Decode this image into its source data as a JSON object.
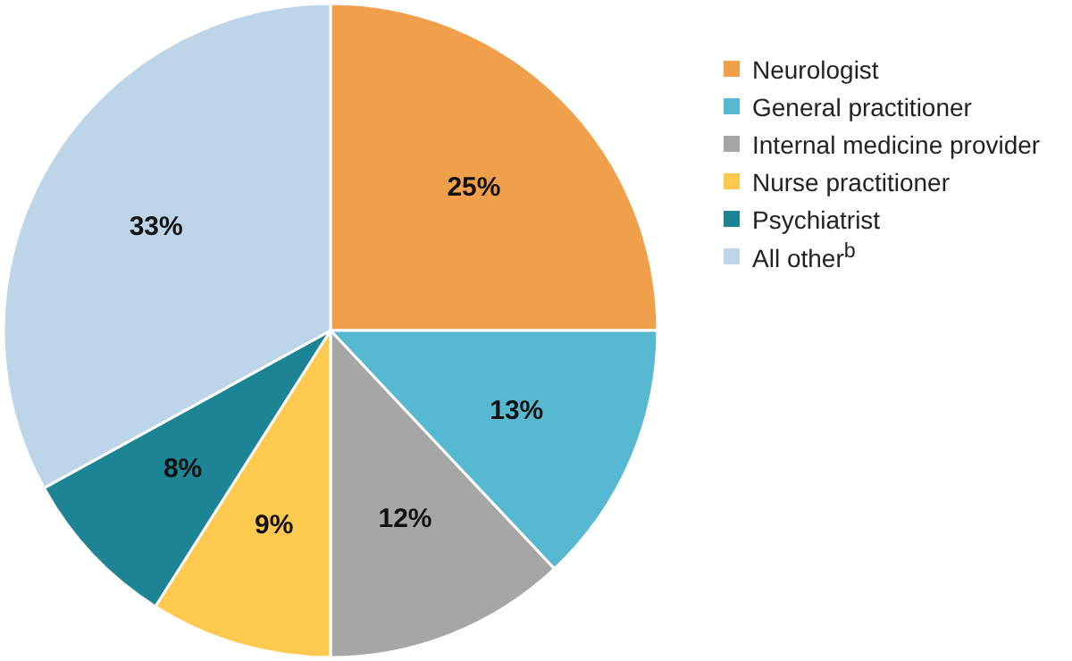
{
  "chart_data": {
    "type": "pie",
    "categories": [
      "Neurologist",
      "General practitioner",
      "Internal medicine provider",
      "Nurse practitioner",
      "Psychiatrist",
      "All other$^{b}$"
    ],
    "values": [
      25,
      13,
      12,
      9,
      8,
      33
    ],
    "colors": [
      "#f0a04b",
      "#57b9d1",
      "#a6a6a6",
      "#fdc94e",
      "#1c8494",
      "#bcd5e8"
    ],
    "value_labels": [
      "25%",
      "13%",
      "12%",
      "9%",
      "8%",
      "33%"
    ],
    "legend": "top right"
  }
}
